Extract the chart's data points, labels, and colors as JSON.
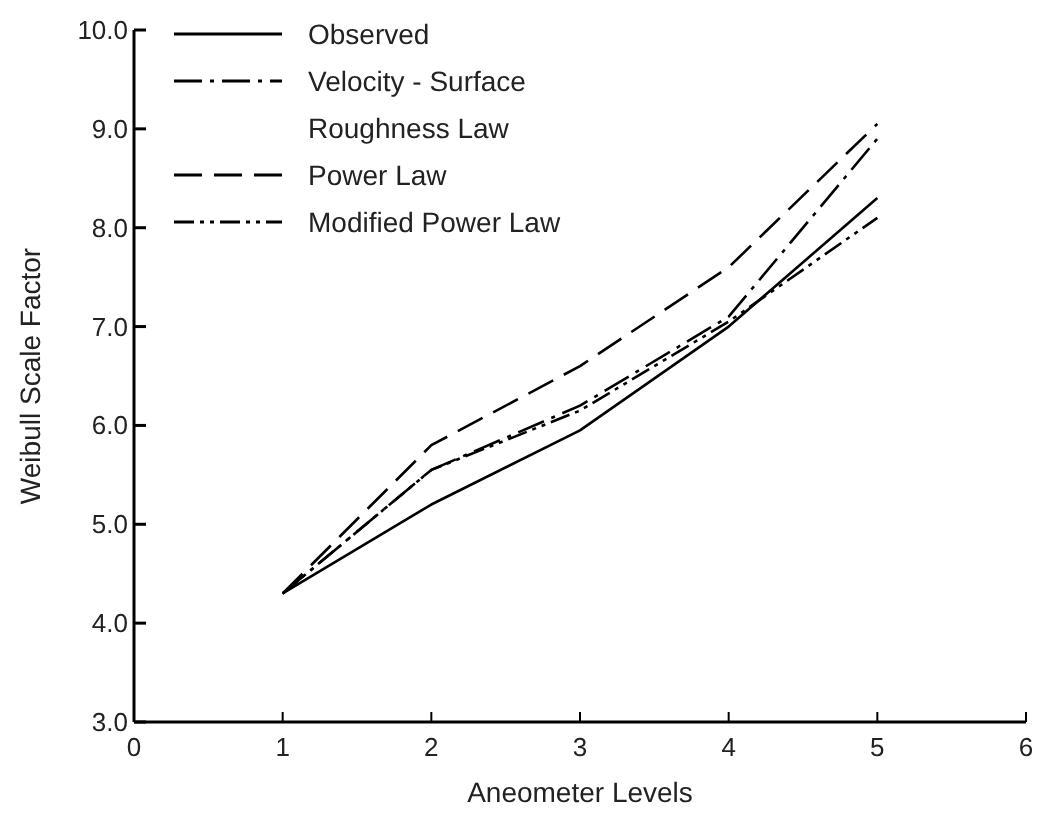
{
  "chart_data": {
    "type": "line",
    "xlabel": "Aneometer Levels",
    "ylabel": "Weibull Scale Factor",
    "x": [
      1,
      2,
      3,
      4,
      5
    ],
    "series": [
      {
        "name": "Observed",
        "color": "#000000",
        "line_style": "solid",
        "values": [
          4.3,
          5.2,
          5.95,
          7.0,
          8.3
        ]
      },
      {
        "name": "Velocity - Surface\nRoughness Law",
        "color": "#000000",
        "line_style": "dashed",
        "values": [
          4.3,
          5.55,
          6.2,
          7.1,
          8.9
        ]
      },
      {
        "name": "Power Law",
        "color": "#000000",
        "line_style": "dashed",
        "values": [
          4.3,
          5.8,
          6.6,
          7.6,
          9.05
        ]
      },
      {
        "name": "Modified Power Law",
        "color": "#000000",
        "line_style": "dotted",
        "values": [
          4.3,
          5.55,
          6.15,
          7.05,
          8.1
        ]
      }
    ],
    "xlim": [
      0,
      6
    ],
    "xticks": [
      0,
      1,
      2,
      3,
      4,
      5,
      6
    ],
    "ylim": [
      3,
      10
    ],
    "yticks": [
      {
        "value": 3,
        "label": "3.0"
      },
      {
        "value": 4,
        "label": "4.0"
      },
      {
        "value": 5,
        "label": "5.0"
      },
      {
        "value": 6,
        "label": "6.0"
      },
      {
        "value": 7,
        "label": "7.0"
      },
      {
        "value": 8,
        "label": "8.0"
      },
      {
        "value": 9,
        "label": "9.0"
      },
      {
        "value": 10,
        "label": "10.0"
      }
    ],
    "legend": "top left",
    "marker": "none"
  }
}
